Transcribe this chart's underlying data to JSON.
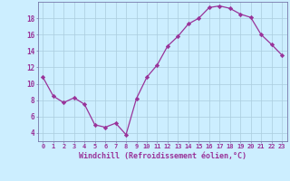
{
  "x": [
    0,
    1,
    2,
    3,
    4,
    5,
    6,
    7,
    8,
    9,
    10,
    11,
    12,
    13,
    14,
    15,
    16,
    17,
    18,
    19,
    20,
    21,
    22,
    23
  ],
  "y": [
    10.8,
    8.5,
    7.7,
    8.3,
    7.5,
    5.0,
    4.7,
    5.2,
    3.8,
    8.2,
    10.8,
    12.3,
    14.6,
    15.8,
    17.3,
    18.0,
    19.3,
    19.5,
    19.2,
    18.5,
    18.1,
    16.0,
    14.8,
    13.5
  ],
  "line_color": "#993399",
  "marker": "D",
  "marker_size": 2.2,
  "bg_color": "#cceeff",
  "grid_color": "#aaccdd",
  "xlabel": "Windchill (Refroidissement éolien,°C)",
  "ylim": [
    3,
    20
  ],
  "xlim": [
    -0.5,
    23.5
  ],
  "yticks": [
    4,
    6,
    8,
    10,
    12,
    14,
    16,
    18
  ],
  "xticks": [
    0,
    1,
    2,
    3,
    4,
    5,
    6,
    7,
    8,
    9,
    10,
    11,
    12,
    13,
    14,
    15,
    16,
    17,
    18,
    19,
    20,
    21,
    22,
    23
  ],
  "tick_color": "#993399",
  "label_color": "#993399",
  "spine_color": "#7777aa"
}
